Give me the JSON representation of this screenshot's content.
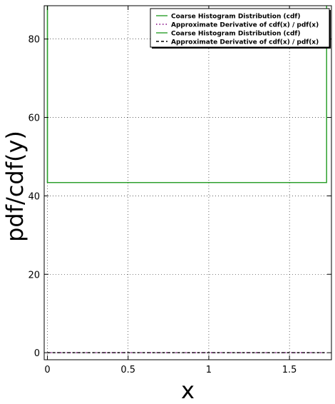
{
  "chart_data": {
    "type": "line",
    "xlabel": "x",
    "ylabel": "pdf/cdf(y)",
    "xlim": [
      -0.02,
      1.76
    ],
    "ylim": [
      -1.8,
      88.5
    ],
    "grid": true,
    "x_ticks": [
      0,
      0.5,
      1,
      1.5
    ],
    "x_tick_labels": [
      "0",
      "0.5",
      "1",
      "1.5"
    ],
    "y_ticks": [
      0,
      20,
      40,
      60,
      80
    ],
    "y_tick_labels": [
      "0",
      "20",
      "40",
      "60",
      "80"
    ],
    "legend_position": "top-right",
    "series": [
      {
        "name": "Coarse Histogram Distribution (cdf)",
        "color": "#2ca02c",
        "style": "solid",
        "x": [
          0,
          0,
          1.73,
          1.73
        ],
        "y": [
          88.5,
          43.4,
          43.4,
          88.5
        ]
      },
      {
        "name": "Approximate Derivative of cdf(x) / pdf(x)",
        "color": "#800080",
        "style": "dotted",
        "x": [
          0,
          1.73
        ],
        "y": [
          0,
          0
        ]
      },
      {
        "name": "Coarse Histogram Distribution (cdf)",
        "color": "#2ca02c",
        "style": "solid",
        "x": [
          0,
          0,
          1.73,
          1.73
        ],
        "y": [
          88.5,
          43.4,
          43.4,
          88.5
        ]
      },
      {
        "name": "Approximate Derivative of cdf(x) / pdf(x)",
        "color": "#000000",
        "style": "dashed",
        "x": [
          0,
          1.73
        ],
        "y": [
          0,
          0
        ]
      }
    ]
  }
}
